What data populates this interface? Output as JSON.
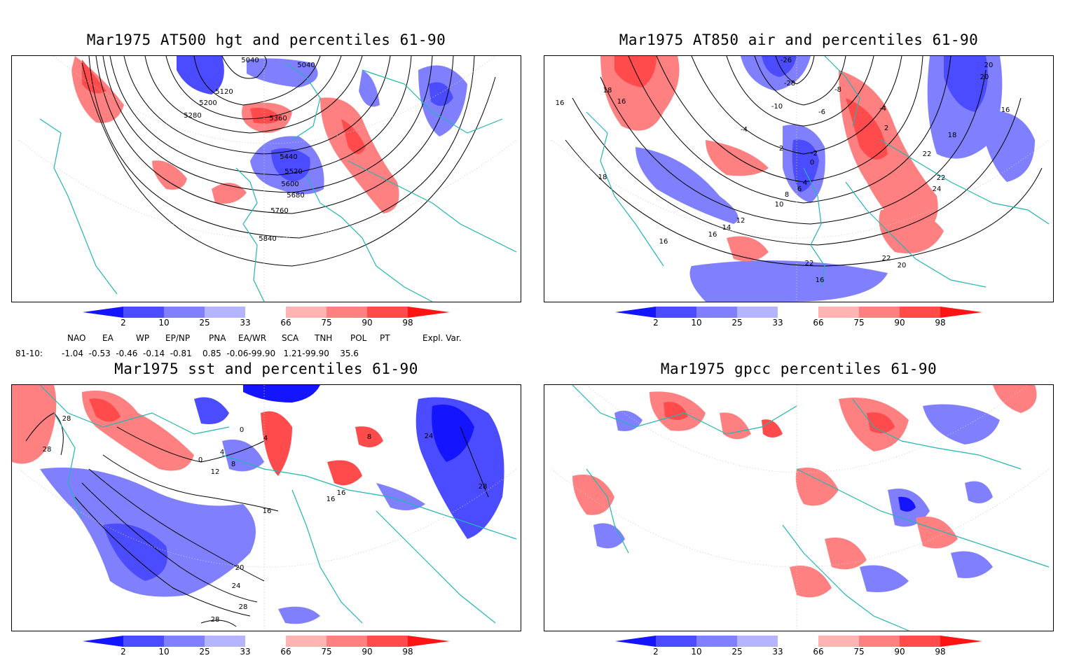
{
  "colors": {
    "blue_dark": "#1414ff",
    "blue_mid": "#4b4bff",
    "blue_light": "#8080ff",
    "blue_pale": "#b4b4ff",
    "red_pale": "#ffb4b4",
    "red_light": "#ff8080",
    "red_mid": "#ff4b4b",
    "red_dark": "#ff1414",
    "coast": "#22b5b5",
    "contour": "#000000"
  },
  "panels": [
    {
      "title": "Mar1975 AT500 hgt and percentiles 61-90",
      "contour_labels": [
        "5040",
        "5040",
        "5120",
        "5200",
        "5280",
        "5360",
        "5440",
        "5520",
        "5600",
        "5680",
        "5760",
        "5840"
      ]
    },
    {
      "title": "Mar1975 AT850 air and percentiles 61-90",
      "contour_labels": [
        "-26",
        "-28",
        "-10",
        "-8",
        "-6",
        "-4",
        "-4",
        "2",
        "-2",
        "0",
        "2",
        "4",
        "6",
        "8",
        "10",
        "12",
        "14",
        "16",
        "16",
        "16",
        "16",
        "18",
        "18",
        "18",
        "20",
        "20",
        "22",
        "22",
        "22",
        "20",
        "24",
        "16",
        "16",
        "22"
      ]
    },
    {
      "title": "Mar1975 sst and percentiles 61-90",
      "contour_labels": [
        "28",
        "28",
        "0",
        "4",
        "8",
        "12",
        "0",
        "4",
        "16",
        "16",
        "16",
        "20",
        "24",
        "28",
        "28",
        "24",
        "28",
        "8"
      ]
    },
    {
      "title": "Mar1975 gpcc percentiles 61-90",
      "contour_labels": []
    }
  ],
  "colorbar": {
    "labels": [
      "2",
      "10",
      "25",
      "33",
      "66",
      "75",
      "90",
      "98"
    ]
  },
  "indices": {
    "headers": [
      "NAO",
      "EA",
      "WP",
      "EP/NP",
      "PNA",
      "EA/WR",
      "SCA",
      "TNH",
      "POL",
      "PT",
      "Expl. Var."
    ],
    "row_label": "81-10:",
    "values": "-1.04  -0.53  -0.46  -0.14  -0.81    0.85  -0.06-99.90   1.21-99.90    35.6"
  }
}
